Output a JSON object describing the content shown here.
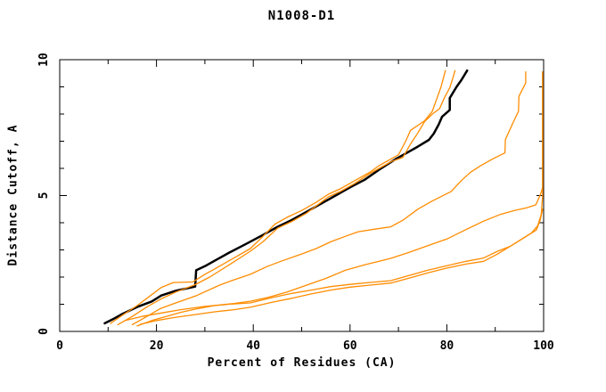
{
  "page": {
    "background": "#ffffff"
  },
  "chart_data": {
    "type": "line",
    "title": "N1008-D1",
    "xlabel": "Percent of Residues (CA)",
    "ylabel": "Distance Cutoff, A",
    "xlim": [
      0,
      100
    ],
    "ylim": [
      0,
      10
    ],
    "x_major_ticks": [
      0,
      20,
      40,
      60,
      80,
      100
    ],
    "x_minor_ticks": [
      10,
      30,
      50,
      70,
      90
    ],
    "y_major_ticks": [
      0,
      5,
      10
    ],
    "y_minor_ticks": [
      1,
      2,
      3,
      4,
      6,
      7,
      8,
      9
    ],
    "grid": false,
    "legend": "none",
    "colors": {
      "model_line": "#000000",
      "reference_lines": "#ff8c00",
      "axis": "#000000"
    },
    "series": [
      {
        "name": "model-black",
        "color": "#000000",
        "width": 2.5,
        "points": [
          [
            9.3,
            0.3
          ],
          [
            11,
            0.45
          ],
          [
            13,
            0.65
          ],
          [
            16,
            0.9
          ],
          [
            19,
            1.1
          ],
          [
            21,
            1.32
          ],
          [
            24,
            1.5
          ],
          [
            28,
            1.65
          ],
          [
            28.2,
            2.25
          ],
          [
            30,
            2.4
          ],
          [
            32,
            2.6
          ],
          [
            35,
            2.9
          ],
          [
            38.5,
            3.22
          ],
          [
            42,
            3.55
          ],
          [
            45,
            3.85
          ],
          [
            48,
            4.1
          ],
          [
            51,
            4.4
          ],
          [
            54,
            4.7
          ],
          [
            57,
            5.0
          ],
          [
            60,
            5.3
          ],
          [
            63,
            5.58
          ],
          [
            66,
            5.95
          ],
          [
            69.5,
            6.35
          ],
          [
            71,
            6.5
          ],
          [
            74,
            6.8
          ],
          [
            76.3,
            7.05
          ],
          [
            77.3,
            7.28
          ],
          [
            78.3,
            7.61
          ],
          [
            79,
            7.9
          ],
          [
            80.6,
            8.15
          ],
          [
            80.6,
            8.59
          ],
          [
            82,
            9.0
          ],
          [
            83,
            9.25
          ],
          [
            84.2,
            9.6
          ]
        ]
      },
      {
        "name": "reference-1",
        "color": "#ff8c00",
        "width": 1.3,
        "points": [
          [
            10.5,
            0.3
          ],
          [
            13,
            0.6
          ],
          [
            16,
            0.95
          ],
          [
            19,
            1.35
          ],
          [
            21,
            1.62
          ],
          [
            23.5,
            1.8
          ],
          [
            27.5,
            1.82
          ],
          [
            30,
            2.1
          ],
          [
            32,
            2.3
          ],
          [
            36,
            2.7
          ],
          [
            39.4,
            3.05
          ],
          [
            42,
            3.5
          ],
          [
            44.5,
            3.95
          ],
          [
            47,
            4.2
          ],
          [
            50,
            4.45
          ],
          [
            53,
            4.75
          ],
          [
            55.5,
            5.05
          ],
          [
            58,
            5.25
          ],
          [
            61,
            5.55
          ],
          [
            64,
            5.85
          ],
          [
            66,
            6.1
          ],
          [
            68,
            6.3
          ],
          [
            70,
            6.5
          ],
          [
            71.5,
            7.0
          ],
          [
            72.5,
            7.4
          ],
          [
            75.4,
            7.75
          ],
          [
            77,
            8.1
          ],
          [
            77.9,
            8.55
          ],
          [
            78.8,
            9.0
          ],
          [
            79.7,
            9.6
          ]
        ]
      },
      {
        "name": "reference-2",
        "color": "#ff8c00",
        "width": 1.3,
        "points": [
          [
            12,
            0.25
          ],
          [
            15,
            0.55
          ],
          [
            18,
            0.9
          ],
          [
            21,
            1.2
          ],
          [
            24,
            1.45
          ],
          [
            28,
            1.72
          ],
          [
            31,
            2.0
          ],
          [
            35,
            2.45
          ],
          [
            39.4,
            2.95
          ],
          [
            42,
            3.3
          ],
          [
            45,
            3.8
          ],
          [
            48,
            4.05
          ],
          [
            51,
            4.35
          ],
          [
            55.5,
            4.95
          ],
          [
            58,
            5.15
          ],
          [
            61,
            5.45
          ],
          [
            64,
            5.8
          ],
          [
            66,
            6.0
          ],
          [
            68.5,
            6.25
          ],
          [
            70.9,
            6.4
          ],
          [
            72.5,
            6.9
          ],
          [
            74,
            7.3
          ],
          [
            75.4,
            7.72
          ],
          [
            77,
            8.0
          ],
          [
            78.5,
            8.2
          ],
          [
            79.5,
            8.6
          ],
          [
            80.6,
            8.97
          ],
          [
            81.2,
            9.3
          ],
          [
            81.7,
            9.6
          ]
        ]
      },
      {
        "name": "reference-3",
        "color": "#ff8c00",
        "width": 1.3,
        "points": [
          [
            15,
            0.25
          ],
          [
            17.5,
            0.5
          ],
          [
            20.9,
            0.85
          ],
          [
            24,
            1.05
          ],
          [
            28.3,
            1.32
          ],
          [
            33,
            1.7
          ],
          [
            36,
            1.9
          ],
          [
            39.4,
            2.1
          ],
          [
            43,
            2.4
          ],
          [
            46,
            2.6
          ],
          [
            50,
            2.85
          ],
          [
            53,
            3.05
          ],
          [
            56,
            3.3
          ],
          [
            59,
            3.5
          ],
          [
            61.7,
            3.67
          ],
          [
            65,
            3.76
          ],
          [
            68.4,
            3.85
          ],
          [
            71,
            4.1
          ],
          [
            74,
            4.5
          ],
          [
            77,
            4.8
          ],
          [
            80.9,
            5.15
          ],
          [
            83,
            5.55
          ],
          [
            84.9,
            5.86
          ],
          [
            87,
            6.1
          ],
          [
            89.5,
            6.35
          ],
          [
            92,
            6.57
          ],
          [
            92.1,
            7.06
          ],
          [
            93.5,
            7.61
          ],
          [
            94.8,
            8.1
          ],
          [
            94.9,
            8.65
          ],
          [
            95.6,
            8.9
          ],
          [
            96.3,
            9.14
          ],
          [
            96.3,
            9.55
          ]
        ]
      },
      {
        "name": "reference-4",
        "color": "#ff8c00",
        "width": 1.3,
        "points": [
          [
            16,
            0.2
          ],
          [
            19,
            0.4
          ],
          [
            22,
            0.55
          ],
          [
            25,
            0.7
          ],
          [
            28,
            0.82
          ],
          [
            32,
            0.95
          ],
          [
            36,
            1.03
          ],
          [
            39.4,
            1.11
          ],
          [
            43,
            1.25
          ],
          [
            47,
            1.45
          ],
          [
            51,
            1.7
          ],
          [
            55,
            1.95
          ],
          [
            59,
            2.25
          ],
          [
            63,
            2.45
          ],
          [
            66,
            2.58
          ],
          [
            68.4,
            2.69
          ],
          [
            72,
            2.9
          ],
          [
            76,
            3.15
          ],
          [
            80,
            3.4
          ],
          [
            84,
            3.75
          ],
          [
            87.6,
            4.06
          ],
          [
            91,
            4.3
          ],
          [
            94,
            4.45
          ],
          [
            96.5,
            4.55
          ],
          [
            98.4,
            4.66
          ],
          [
            99.4,
            5.06
          ],
          [
            99.8,
            5.3
          ],
          [
            99.8,
            9.55
          ]
        ]
      },
      {
        "name": "reference-5",
        "color": "#ff8c00",
        "width": 1.3,
        "points": [
          [
            13.5,
            0.4
          ],
          [
            17,
            0.55
          ],
          [
            21,
            0.68
          ],
          [
            25,
            0.8
          ],
          [
            30,
            0.92
          ],
          [
            35,
            1.0
          ],
          [
            39.4,
            1.05
          ],
          [
            44,
            1.25
          ],
          [
            48,
            1.4
          ],
          [
            52,
            1.52
          ],
          [
            56,
            1.65
          ],
          [
            60,
            1.73
          ],
          [
            64,
            1.8
          ],
          [
            68.4,
            1.87
          ],
          [
            72,
            2.05
          ],
          [
            76,
            2.25
          ],
          [
            80,
            2.42
          ],
          [
            84,
            2.58
          ],
          [
            87.6,
            2.7
          ],
          [
            90.5,
            2.95
          ],
          [
            93.1,
            3.13
          ],
          [
            95.5,
            3.4
          ],
          [
            97.5,
            3.62
          ],
          [
            98.8,
            3.9
          ],
          [
            99.5,
            4.3
          ],
          [
            99.8,
            5.0
          ],
          [
            99.8,
            9.55
          ]
        ]
      },
      {
        "name": "reference-6",
        "color": "#ff8c00",
        "width": 1.3,
        "points": [
          [
            16.6,
            0.26
          ],
          [
            20,
            0.4
          ],
          [
            24,
            0.52
          ],
          [
            28,
            0.62
          ],
          [
            32,
            0.72
          ],
          [
            36,
            0.8
          ],
          [
            39.4,
            0.89
          ],
          [
            44,
            1.08
          ],
          [
            48,
            1.22
          ],
          [
            52,
            1.38
          ],
          [
            56,
            1.52
          ],
          [
            60,
            1.63
          ],
          [
            64,
            1.7
          ],
          [
            68.4,
            1.78
          ],
          [
            72,
            1.95
          ],
          [
            76,
            2.15
          ],
          [
            80,
            2.33
          ],
          [
            84,
            2.48
          ],
          [
            87.6,
            2.58
          ],
          [
            90.5,
            2.85
          ],
          [
            93.1,
            3.13
          ],
          [
            95.5,
            3.4
          ],
          [
            97.5,
            3.62
          ],
          [
            98.5,
            3.73
          ],
          [
            99.3,
            4.1
          ],
          [
            99.8,
            4.5
          ]
        ]
      }
    ]
  }
}
